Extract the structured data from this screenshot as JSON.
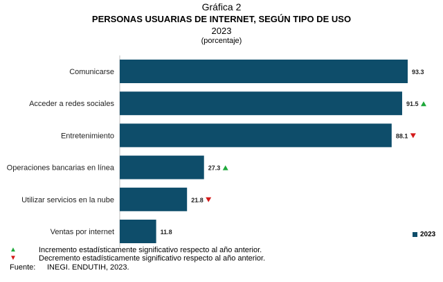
{
  "header": {
    "figure_label": "Gráfica 2",
    "title": "PERSONAS USUARIAS DE INTERNET, SEGÚN TIPO DE USO",
    "year": "2023",
    "unit": "(porcentaje)"
  },
  "chart_data": {
    "type": "bar",
    "orientation": "horizontal",
    "title": "PERSONAS USUARIAS DE INTERNET, SEGÚN TIPO DE USO",
    "categories": [
      "Comunicarse",
      "Acceder a redes sociales",
      "Entretenimiento",
      "Operaciones bancarias en línea",
      "Utilizar servicios en la nube",
      "Ventas por internet"
    ],
    "series": [
      {
        "name": "2023",
        "values": [
          93.3,
          91.5,
          88.1,
          27.3,
          21.8,
          11.8
        ]
      }
    ],
    "value_labels": [
      "93.3",
      "91.5",
      "88.1",
      "27.3",
      "21.8",
      "11.8"
    ],
    "change_flags": [
      "",
      "up",
      "down",
      "up",
      "down",
      ""
    ],
    "xlim": [
      0,
      95
    ],
    "grid": false,
    "legend_position": "bottom-right",
    "colors": {
      "bar": "#0e4d6a",
      "up": "#1ea83a",
      "down": "#d41a1a"
    }
  },
  "legend": {
    "label": "2023"
  },
  "notes": {
    "up_symbol": "▲",
    "up_text": "Incremento estadísticamente significativo respecto al año anterior.",
    "down_symbol": "▼",
    "down_text": "Decremento estadísticamente significativo respecto al año anterior.",
    "source_label": "Fuente:",
    "source_text": "INEGI. ENDUTIH, 2023."
  }
}
